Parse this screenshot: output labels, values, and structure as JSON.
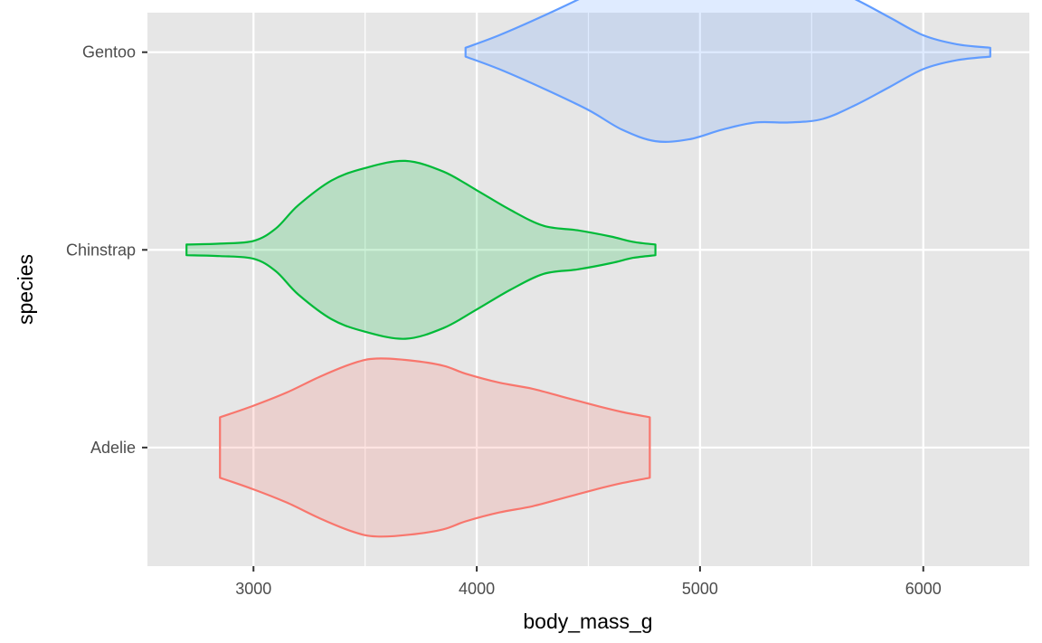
{
  "chart_data": {
    "type": "violin",
    "orientation": "horizontal",
    "title": "",
    "xlabel": "body_mass_g",
    "ylabel": "species",
    "xlim": [
      2525,
      6475
    ],
    "x_ticks": [
      3000,
      4000,
      5000,
      6000
    ],
    "x_tick_labels": [
      "3000",
      "4000",
      "5000",
      "6000"
    ],
    "grid": true,
    "panel_background": "#e6e6e6",
    "grid_color": "#ffffff",
    "categories": [
      "Adelie",
      "Chinstrap",
      "Gentoo"
    ],
    "series": [
      {
        "name": "Adelie",
        "color": "#f8766d",
        "fill": "#f8766d",
        "range": [
          2850,
          4775
        ],
        "density": [
          [
            2850,
            0.34
          ],
          [
            3000,
            0.47
          ],
          [
            3150,
            0.62
          ],
          [
            3300,
            0.8
          ],
          [
            3450,
            0.95
          ],
          [
            3550,
            1.0
          ],
          [
            3700,
            0.98
          ],
          [
            3850,
            0.92
          ],
          [
            3950,
            0.83
          ],
          [
            4100,
            0.73
          ],
          [
            4250,
            0.66
          ],
          [
            4400,
            0.56
          ],
          [
            4550,
            0.46
          ],
          [
            4650,
            0.4
          ],
          [
            4775,
            0.34
          ]
        ]
      },
      {
        "name": "Chinstrap",
        "color": "#00ba38",
        "fill": "#00ba38",
        "range": [
          2700,
          4800
        ],
        "density": [
          [
            2700,
            0.06
          ],
          [
            2850,
            0.07
          ],
          [
            3000,
            0.1
          ],
          [
            3100,
            0.24
          ],
          [
            3200,
            0.5
          ],
          [
            3350,
            0.78
          ],
          [
            3500,
            0.92
          ],
          [
            3680,
            1.0
          ],
          [
            3850,
            0.88
          ],
          [
            4000,
            0.67
          ],
          [
            4150,
            0.45
          ],
          [
            4300,
            0.27
          ],
          [
            4450,
            0.22
          ],
          [
            4600,
            0.15
          ],
          [
            4700,
            0.09
          ],
          [
            4800,
            0.06
          ]
        ]
      },
      {
        "name": "Gentoo",
        "color": "#619cff",
        "fill": "#619cff",
        "range": [
          3950,
          6300
        ],
        "density": [
          [
            3950,
            0.05
          ],
          [
            4100,
            0.19
          ],
          [
            4300,
            0.41
          ],
          [
            4500,
            0.65
          ],
          [
            4650,
            0.87
          ],
          [
            4800,
            1.0
          ],
          [
            4950,
            0.98
          ],
          [
            5100,
            0.87
          ],
          [
            5250,
            0.79
          ],
          [
            5400,
            0.79
          ],
          [
            5550,
            0.75
          ],
          [
            5700,
            0.59
          ],
          [
            5850,
            0.39
          ],
          [
            6000,
            0.19
          ],
          [
            6150,
            0.09
          ],
          [
            6300,
            0.05
          ]
        ]
      }
    ]
  }
}
